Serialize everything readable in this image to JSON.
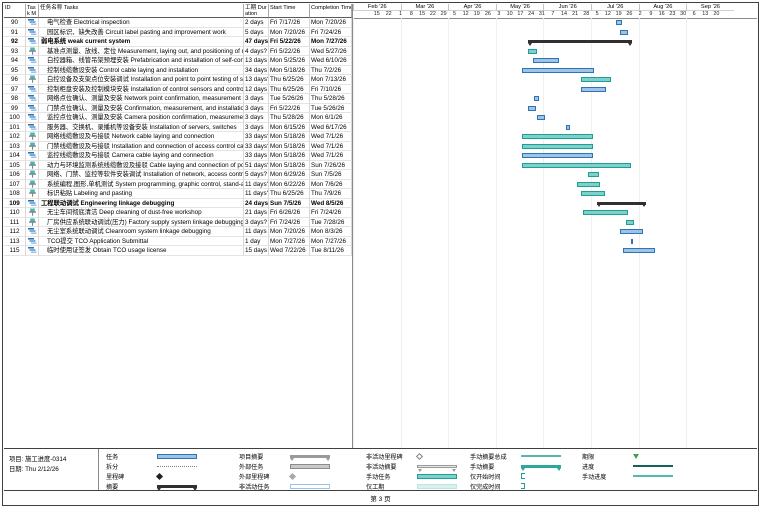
{
  "page": {
    "page_number_label": "第 3 页"
  },
  "footer": {
    "project_label": "项目: 施工进度-0314",
    "date_label": "日期: Thu 2/12/26"
  },
  "colors": {
    "auto_bar": "#9dc3e6",
    "auto_border": "#2e74b5",
    "manual_bar": "#7ed0cb",
    "manual_border": "#1f9e96",
    "summary_bar": "#303030",
    "grid": "#d8d8d8",
    "deadline": "#4a9e4a"
  },
  "table": {
    "headers": {
      "id": "ID",
      "mode": "Task Mode",
      "name": "任务名称 Tasks",
      "duration": "工期 Duration",
      "start": "Start Time",
      "finish": "Completion Time"
    }
  },
  "timescale": {
    "months": [
      {
        "label": "Feb '26",
        "month": 2,
        "days": 28,
        "ticks": [
          15,
          22
        ]
      },
      {
        "label": "Mar '26",
        "month": 3,
        "days": 31,
        "ticks": [
          1,
          8,
          15,
          22,
          29
        ]
      },
      {
        "label": "Apr '26",
        "month": 4,
        "days": 30,
        "ticks": [
          5,
          12,
          19,
          26
        ]
      },
      {
        "label": "May '26",
        "month": 5,
        "days": 31,
        "ticks": [
          3,
          10,
          17,
          24,
          31
        ]
      },
      {
        "label": "Jun '26",
        "month": 6,
        "days": 30,
        "ticks": [
          7,
          14,
          21,
          28
        ]
      },
      {
        "label": "Jul '26",
        "month": 7,
        "days": 31,
        "ticks": [
          5,
          12,
          19,
          26
        ]
      },
      {
        "label": "Aug '26",
        "month": 8,
        "days": 31,
        "ticks": [
          2,
          9,
          16,
          23,
          30
        ]
      },
      {
        "label": "Sep '26",
        "month": 9,
        "days": 30,
        "ticks": [
          6,
          13,
          20
        ]
      }
    ]
  },
  "tasks": [
    {
      "id": "90",
      "mode": "auto",
      "type": "task",
      "name": "电气检查 Electrical inspection",
      "duration": "2 days",
      "start": "Fri 7/17/26",
      "finish": "Mon 7/20/26"
    },
    {
      "id": "91",
      "mode": "auto",
      "type": "task",
      "name": "园区标识、缺失改善 Circuit label pasting and improvement work",
      "duration": "5 days",
      "start": "Mon 7/20/26",
      "finish": "Fri 7/24/26"
    },
    {
      "id": "92",
      "mode": "auto",
      "type": "summary",
      "name": "弱电系统 weak current system",
      "duration": "47 days?",
      "start": "Fri 5/22/26",
      "finish": "Mon 7/27/26"
    },
    {
      "id": "93",
      "mode": "manual",
      "type": "task",
      "name": "基准点测量、放线、定位 Measurement, laying out, and positioning of reference points",
      "duration": "4 days?",
      "start": "Fri 5/22/26",
      "finish": "Wed 5/27/26"
    },
    {
      "id": "94",
      "mode": "auto",
      "type": "task",
      "name": "白控器箱、线管吊架预埋安装 Prefabrication and installation of self-control boxes and conduit hangers",
      "duration": "13 days",
      "start": "Mon 5/25/26",
      "finish": "Wed 6/10/26"
    },
    {
      "id": "95",
      "mode": "auto",
      "type": "task",
      "name": "控制线缆敷设安装 Control cable laying and installation",
      "duration": "34 days",
      "start": "Mon 5/18/26",
      "finish": "Thu 7/2/26"
    },
    {
      "id": "96",
      "mode": "manual",
      "type": "task",
      "name": "白控设备及支架点位安装调试 Installation and point to point testing of self-control equipment",
      "duration": "13 days?",
      "start": "Thu 6/25/26",
      "finish": "Mon 7/13/26"
    },
    {
      "id": "97",
      "mode": "auto",
      "type": "task",
      "name": "控制柜盘安装及控制模块安装 Installation of control sensors and control modules",
      "duration": "12 days",
      "start": "Thu 6/25/26",
      "finish": "Fri 7/10/26"
    },
    {
      "id": "98",
      "mode": "auto",
      "type": "task",
      "name": "网络点位确认、测量及安装 Network point confirmation, measurement and installation",
      "duration": "3 days",
      "start": "Tue 5/26/26",
      "finish": "Thu 5/28/26"
    },
    {
      "id": "99",
      "mode": "auto",
      "type": "task",
      "name": "门禁点位确认、测量及安装 Confirmation, measurement, and installation of access control points",
      "duration": "3 days",
      "start": "Fri 5/22/26",
      "finish": "Tue 5/26/26"
    },
    {
      "id": "100",
      "mode": "auto",
      "type": "task",
      "name": "监控点位确认、测量及安装 Camera position confirmation, measurement and installation",
      "duration": "3 days",
      "start": "Thu 5/28/26",
      "finish": "Mon 6/1/26"
    },
    {
      "id": "101",
      "mode": "auto",
      "type": "task",
      "name": "服务器、交换机、录播机等设备安装 Installation of servers, switches",
      "duration": "3 days",
      "start": "Mon 6/15/26",
      "finish": "Wed 6/17/26"
    },
    {
      "id": "102",
      "mode": "manual",
      "type": "task",
      "name": "网络线缆敷设及与接驳 Network cable laying and connection",
      "duration": "33 days?",
      "start": "Mon 5/18/26",
      "finish": "Wed 7/1/26"
    },
    {
      "id": "103",
      "mode": "manual",
      "type": "task",
      "name": "门禁线缆敷设及与接驳 Installation and connection of access control cables",
      "duration": "33 days?",
      "start": "Mon 5/18/26",
      "finish": "Wed 7/1/26"
    },
    {
      "id": "104",
      "mode": "auto",
      "type": "task",
      "name": "监控线缆敷设及与接驳 Camera cable laying and connection",
      "duration": "33 days",
      "start": "Mon 5/18/26",
      "finish": "Wed 7/1/26"
    },
    {
      "id": "105",
      "mode": "manual",
      "type": "task",
      "name": "动力与环境监测系统线缆敷设及接驳 Cable laying and connection of power and environment monitoring systems",
      "duration": "51 days?",
      "start": "Mon 5/18/26",
      "finish": "Sun 7/26/26"
    },
    {
      "id": "106",
      "mode": "manual",
      "type": "task",
      "name": "网络、门禁、监控等软件安装调试 Installation of network, access control, camera software",
      "duration": "5 days?",
      "start": "Mon 6/29/26",
      "finish": "Sun 7/5/26"
    },
    {
      "id": "107",
      "mode": "manual",
      "type": "task",
      "name": "系统编程,图形,单机测试 System programming, graphic control, stand-alone test",
      "duration": "11 days?",
      "start": "Mon 6/22/26",
      "finish": "Mon 7/6/26"
    },
    {
      "id": "108",
      "mode": "manual",
      "type": "task",
      "name": "标识粘贴 Labeling and pasting",
      "duration": "11 days?",
      "start": "Thu 6/25/26",
      "finish": "Thu 7/9/26"
    },
    {
      "id": "109",
      "mode": "auto",
      "type": "summary",
      "name": "工程联动调试 Engineering linkage debugging",
      "duration": "24 days",
      "start": "Sun 7/5/26",
      "finish": "Wed 8/5/26"
    },
    {
      "id": "110",
      "mode": "manual",
      "type": "task",
      "name": "无尘车间彻底清洁 Deep cleaning of dust-free workshop",
      "duration": "21 days",
      "start": "Fri 6/26/26",
      "finish": "Fri 7/24/26"
    },
    {
      "id": "111",
      "mode": "manual",
      "type": "task",
      "name": "厂房供应系统联动调试(压力) Factory supply system linkage debugging",
      "duration": "3 days?",
      "start": "Fri 7/24/26",
      "finish": "Tue 7/28/26"
    },
    {
      "id": "112",
      "mode": "auto",
      "type": "task",
      "name": "无尘室系统联动调试 Cleanroom system linkage debugging",
      "duration": "11 days",
      "start": "Mon 7/20/26",
      "finish": "Mon 8/3/26"
    },
    {
      "id": "113",
      "mode": "auto",
      "type": "task",
      "name": "TCO提交 TCO Application Submittal",
      "duration": "1 day",
      "start": "Mon 7/27/26",
      "finish": "Mon 7/27/26"
    },
    {
      "id": "115",
      "mode": "auto",
      "type": "task",
      "name": "临时使用证签发 Obtain TCO usage license",
      "duration": "15 days",
      "start": "Wed 7/22/26",
      "finish": "Tue 8/11/26"
    }
  ],
  "legend": [
    {
      "label": "任务",
      "sw": "task"
    },
    {
      "label": "拆分",
      "sw": "split"
    },
    {
      "label": "里程碑",
      "sw": "milestone"
    },
    {
      "label": "摘要",
      "sw": "summary"
    },
    {
      "label": "项目摘要",
      "sw": "project-summary"
    },
    {
      "label": "外部任务",
      "sw": "external-task"
    },
    {
      "label": "外部里程碑",
      "sw": "external-milestone"
    },
    {
      "label": "非活动任务",
      "sw": "inactive-task"
    },
    {
      "label": "非活动里程碑",
      "sw": "inactive-milestone"
    },
    {
      "label": "非活动摘要",
      "sw": "inactive-summary"
    },
    {
      "label": "手动任务",
      "sw": "manual-task"
    },
    {
      "label": "仅工期",
      "sw": "duration-only"
    },
    {
      "label": "手动摘要总成",
      "sw": "manual-summary-rollup"
    },
    {
      "label": "手动摘要",
      "sw": "manual-summary"
    },
    {
      "label": "仅开始时间",
      "sw": "start-only"
    },
    {
      "label": "仅完成时间",
      "sw": "finish-only"
    },
    {
      "label": "期限",
      "sw": "deadline"
    },
    {
      "label": "进度",
      "sw": "progress"
    },
    {
      "label": "手动进度",
      "sw": "manual-progress"
    }
  ]
}
